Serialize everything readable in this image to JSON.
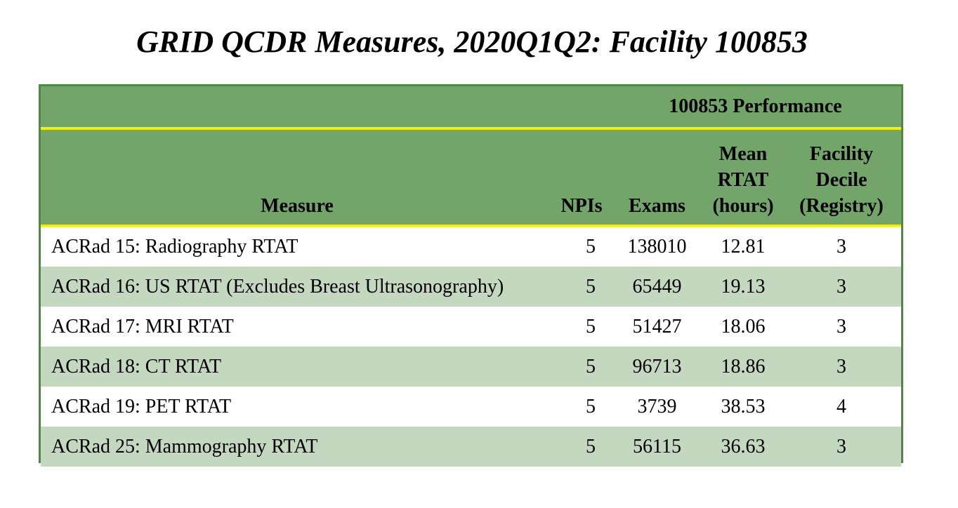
{
  "title": "GRID QCDR Measures, 2020Q1Q2: Facility 100853",
  "table": {
    "group_header": "100853 Performance",
    "columns": {
      "measure": "Measure",
      "npis": "NPIs",
      "exams": "Exams",
      "mean_rtat": [
        "Mean",
        "RTAT",
        "(hours)"
      ],
      "facility_decile": [
        "Facility",
        "Decile",
        "(Registry)"
      ]
    },
    "rows": [
      {
        "measure": "ACRad 15: Radiography RTAT",
        "npis": "5",
        "exams": "138010",
        "mean_rtat": "12.81",
        "decile": "3"
      },
      {
        "measure": "ACRad 16: US RTAT (Excludes Breast Ultrasonography)",
        "npis": "5",
        "exams": "65449",
        "mean_rtat": "19.13",
        "decile": "3"
      },
      {
        "measure": "ACRad 17: MRI RTAT",
        "npis": "5",
        "exams": "51427",
        "mean_rtat": "18.06",
        "decile": "3"
      },
      {
        "measure": "ACRad 18: CT RTAT",
        "npis": "5",
        "exams": "96713",
        "mean_rtat": "18.86",
        "decile": "3"
      },
      {
        "measure": "ACRad 19: PET RTAT",
        "npis": "5",
        "exams": "3739",
        "mean_rtat": "38.53",
        "decile": "4"
      },
      {
        "measure": "ACRad 25: Mammography RTAT",
        "npis": "5",
        "exams": "56115",
        "mean_rtat": "36.63",
        "decile": "3"
      }
    ]
  },
  "colors": {
    "header_green": "#73a56a",
    "border_green": "#4c8a40",
    "shaded_row": "#c3d8bf",
    "divider_yellow": "#f2f200"
  }
}
